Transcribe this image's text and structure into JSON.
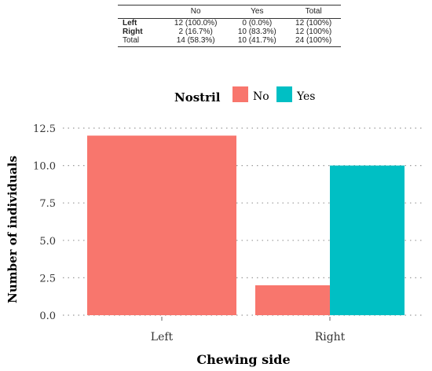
{
  "table": {
    "headers": [
      "",
      "No",
      "Yes",
      "Total"
    ],
    "rows": [
      {
        "label": "Left",
        "bold": true,
        "no": "12 (100.0%)",
        "yes": "0 (0.0%)",
        "total": "12 (100%)"
      },
      {
        "label": "Right",
        "bold": true,
        "no": "2 (16.7%)",
        "yes": "10 (83.3%)",
        "total": "12 (100%)"
      },
      {
        "label": "Total",
        "bold": false,
        "no": "14 (58.3%)",
        "yes": "10 (41.7%)",
        "total": "24 (100%)"
      }
    ]
  },
  "chart_data": {
    "type": "bar",
    "categories": [
      "Left",
      "Right"
    ],
    "series": [
      {
        "name": "No",
        "color": "#F8766D",
        "values": [
          12,
          2
        ]
      },
      {
        "name": "Yes",
        "color": "#00BFC4",
        "values": [
          0,
          10
        ]
      }
    ],
    "legend_title": "Nostril",
    "xlabel": "Chewing side",
    "ylabel": "Number of individuals",
    "ylim": [
      0,
      12.5
    ],
    "yticks": [
      "0.0",
      "2.5",
      "5.0",
      "7.5",
      "10.0",
      "12.5"
    ],
    "legend_position": "top",
    "grid": "dotted horizontal"
  }
}
